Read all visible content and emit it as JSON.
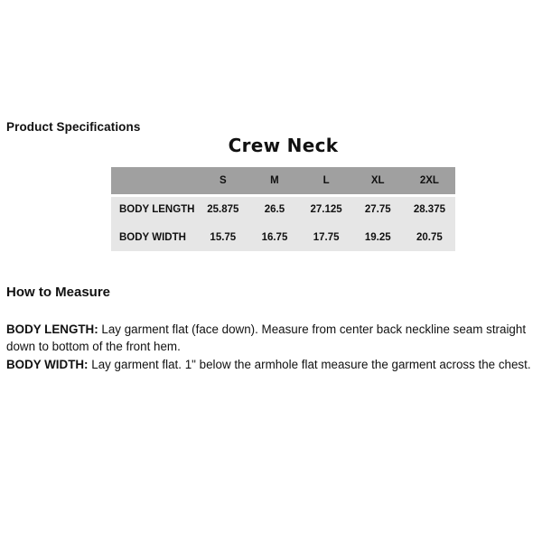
{
  "page": {
    "section_title": "Product Specifications",
    "product_title": "Crew Neck"
  },
  "size_chart": {
    "columns": [
      "S",
      "M",
      "L",
      "XL",
      "2XL"
    ],
    "rows": [
      {
        "label": "BODY LENGTH",
        "values": [
          "25.875",
          "26.5",
          "27.125",
          "27.75",
          "28.375"
        ]
      },
      {
        "label": "BODY WIDTH",
        "values": [
          "15.75",
          "16.75",
          "17.75",
          "19.25",
          "20.75"
        ]
      }
    ],
    "colors": {
      "header_bg": "#a0a0a0",
      "row_bg": "#e6e6e6"
    }
  },
  "how_to_measure": {
    "heading": "How to Measure",
    "items": [
      {
        "term": "BODY LENGTH:",
        "description": "Lay garment flat (face down). Measure from center back neckline seam straight down to bottom of the front hem."
      },
      {
        "term": "BODY WIDTH:",
        "description": "Lay garment flat. 1\" below the armhole flat measure the garment across the chest."
      }
    ]
  }
}
